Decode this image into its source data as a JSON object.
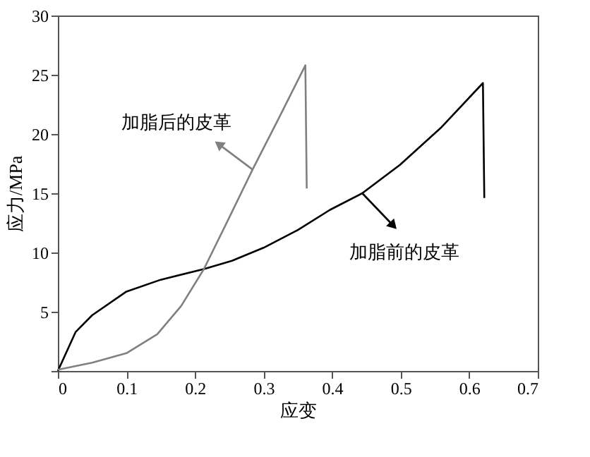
{
  "chart_data": {
    "type": "line",
    "xlabel": "应变",
    "ylabel": "应力/MPa",
    "xlim": [
      0,
      0.7
    ],
    "ylim": [
      0,
      30
    ],
    "xticks": [
      {
        "value": 0,
        "label": "0"
      },
      0.1,
      0.2,
      0.3,
      0.4,
      0.5,
      0.6,
      0.7
    ],
    "yticks": [
      {
        "value": 0,
        "label": null
      },
      5,
      10,
      15,
      20,
      25,
      30
    ],
    "grid": false,
    "marker": "none",
    "line_style": "solid",
    "series": [
      {
        "color": "#000000",
        "x": [
          0,
          0.026,
          0.05,
          0.1,
          0.15,
          0.213,
          0.254,
          0.3,
          0.35,
          0.397,
          0.444,
          0.499,
          0.56,
          0.62,
          0.622
        ],
        "values": [
          0,
          3.3,
          4.7,
          6.7,
          7.7,
          8.6,
          9.3,
          10.4,
          11.9,
          13.6,
          15.0,
          17.4,
          20.6,
          24.3,
          14.6
        ]
      },
      {
        "color": "#808080",
        "x": [
          0,
          0.05,
          0.1,
          0.145,
          0.18,
          0.213,
          0.247,
          0.284,
          0.322,
          0.361,
          0.363
        ],
        "values": [
          0.1,
          0.7,
          1.5,
          3.1,
          5.5,
          8.6,
          12.6,
          17.0,
          21.3,
          25.8,
          15.4
        ]
      }
    ],
    "annotations": [
      {
        "text": "加脂前的皮革",
        "x": 0.444,
        "y": 15.0
      },
      {
        "text": "加脂后的皮革",
        "x": 0.284,
        "y": 17.0
      }
    ]
  }
}
